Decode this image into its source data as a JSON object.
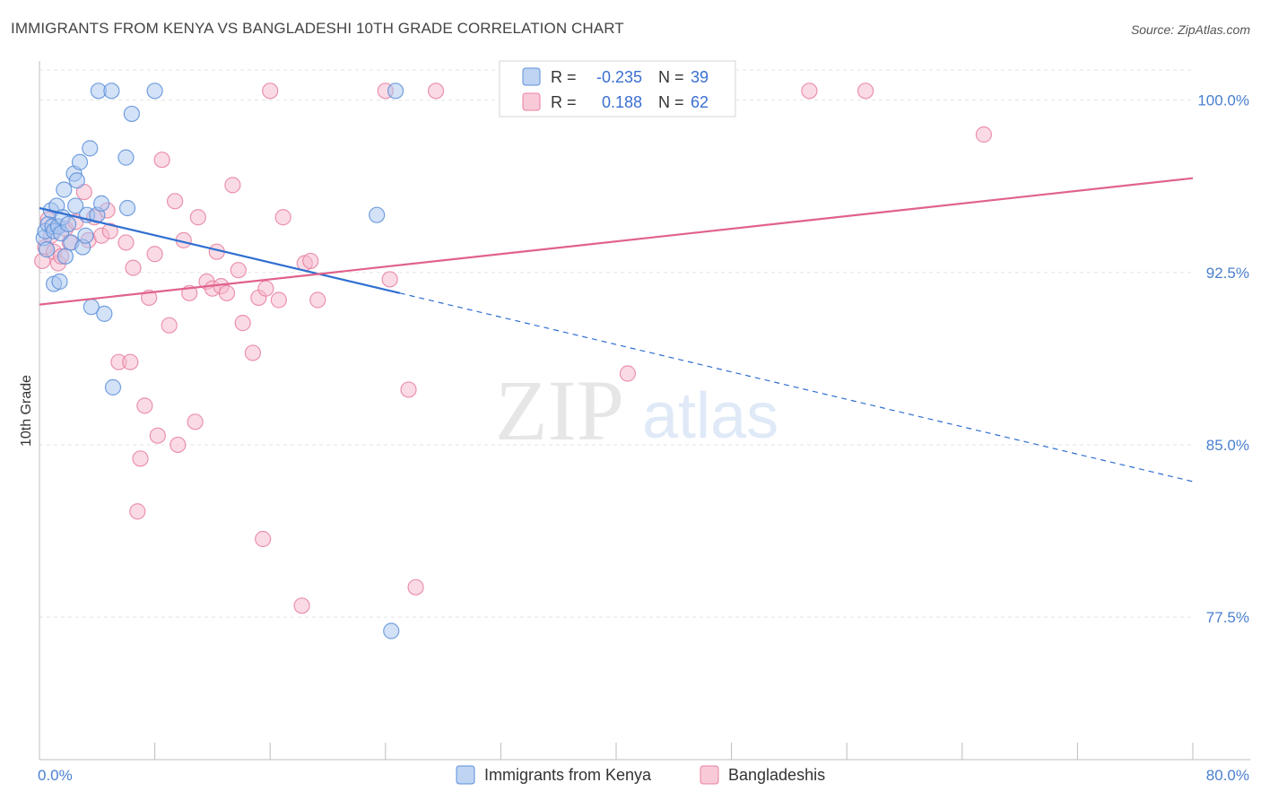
{
  "header": {
    "title": "IMMIGRANTS FROM KENYA VS BANGLADESHI 10TH GRADE CORRELATION CHART",
    "source": "Source: ZipAtlas.com"
  },
  "watermark": {
    "zip": "ZIP",
    "atlas": "atlas"
  },
  "colors": {
    "blue_fill": "#a9c6ef",
    "blue_stroke": "#5b8fd9",
    "blue_line": "#2f6fd1",
    "pink_fill": "#f5b8cb",
    "pink_stroke": "#e8809f",
    "pink_line": "#e0628c",
    "grid": "#e3e3e3",
    "axis_label": "#4a7fcf"
  },
  "chart_data": {
    "type": "scatter",
    "title": "IMMIGRANTS FROM KENYA VS BANGLADESHI 10TH GRADE CORRELATION CHART",
    "xlabel": "",
    "ylabel": "10th Grade",
    "xlim": [
      0,
      80
    ],
    "ylim": [
      71.3,
      101.7
    ],
    "x_tick_labels": [
      {
        "value": 0,
        "label": "0.0%"
      },
      {
        "value": 80,
        "label": "80.0%"
      }
    ],
    "x_minor_ticks": [
      0,
      8,
      16,
      24,
      32,
      40,
      48,
      56,
      64,
      72,
      80
    ],
    "y_ticks": [
      {
        "value": 100.0,
        "label": "100.0%"
      },
      {
        "value": 92.5,
        "label": "92.5%"
      },
      {
        "value": 85.0,
        "label": "85.0%"
      },
      {
        "value": 77.5,
        "label": "77.5%"
      }
    ],
    "grid": true,
    "legend": {
      "position": "top-center",
      "entries": [
        {
          "r_label": "R =",
          "r": "-0.235",
          "n_label": "N =",
          "n": "39"
        },
        {
          "r_label": "R =",
          "r": "0.188",
          "n_label": "N =",
          "n": "62"
        }
      ]
    },
    "bottom_legend": [
      "Immigrants from Kenya",
      "Bangladeshis"
    ],
    "series": [
      {
        "name": "Immigrants from Kenya",
        "color": "blue",
        "trend": {
          "x0": 0,
          "y0": 95.3,
          "x1": 25,
          "y1": 91.6,
          "dash_to_x": 80,
          "dash_to_y": 83.4
        },
        "points": [
          [
            0.3,
            94.0
          ],
          [
            0.4,
            94.3
          ],
          [
            0.5,
            93.5
          ],
          [
            0.6,
            94.6
          ],
          [
            0.8,
            95.2
          ],
          [
            0.9,
            94.5
          ],
          [
            1.0,
            94.3
          ],
          [
            1.0,
            92.0
          ],
          [
            1.2,
            95.4
          ],
          [
            1.3,
            94.5
          ],
          [
            1.4,
            92.1
          ],
          [
            1.5,
            94.2
          ],
          [
            1.6,
            94.9
          ],
          [
            1.7,
            96.1
          ],
          [
            1.8,
            93.2
          ],
          [
            2.0,
            94.6
          ],
          [
            2.2,
            93.8
          ],
          [
            2.4,
            96.8
          ],
          [
            2.5,
            95.4
          ],
          [
            2.6,
            96.5
          ],
          [
            2.8,
            97.3
          ],
          [
            3.0,
            93.6
          ],
          [
            3.2,
            94.1
          ],
          [
            3.3,
            95.0
          ],
          [
            3.5,
            97.9
          ],
          [
            3.6,
            91.0
          ],
          [
            4.0,
            95.0
          ],
          [
            4.1,
            100.4
          ],
          [
            4.3,
            95.5
          ],
          [
            4.5,
            90.7
          ],
          [
            5.0,
            100.4
          ],
          [
            5.1,
            87.5
          ],
          [
            6.0,
            97.5
          ],
          [
            6.1,
            95.3
          ],
          [
            6.4,
            99.4
          ],
          [
            8.0,
            100.4
          ],
          [
            23.4,
            95.0
          ],
          [
            24.7,
            100.4
          ],
          [
            24.4,
            76.9
          ]
        ]
      },
      {
        "name": "Bangladeshis",
        "color": "pink",
        "trend": {
          "x0": 0,
          "y0": 91.1,
          "x1": 80,
          "y1": 96.6
        },
        "points": [
          [
            0.2,
            93.0
          ],
          [
            0.4,
            93.6
          ],
          [
            0.6,
            94.8
          ],
          [
            0.8,
            94.1
          ],
          [
            1.0,
            93.4
          ],
          [
            1.3,
            92.9
          ],
          [
            1.5,
            93.2
          ],
          [
            1.8,
            94.4
          ],
          [
            2.1,
            93.8
          ],
          [
            2.5,
            94.7
          ],
          [
            3.1,
            96.0
          ],
          [
            3.4,
            93.9
          ],
          [
            3.8,
            94.9
          ],
          [
            4.3,
            94.1
          ],
          [
            4.7,
            95.2
          ],
          [
            4.9,
            94.3
          ],
          [
            5.5,
            88.6
          ],
          [
            6.0,
            93.8
          ],
          [
            6.3,
            88.6
          ],
          [
            6.5,
            92.7
          ],
          [
            6.8,
            82.1
          ],
          [
            7.0,
            84.4
          ],
          [
            7.3,
            86.7
          ],
          [
            7.6,
            91.4
          ],
          [
            8.0,
            93.3
          ],
          [
            8.2,
            85.4
          ],
          [
            8.5,
            97.4
          ],
          [
            9.0,
            90.2
          ],
          [
            9.4,
            95.6
          ],
          [
            9.6,
            85.0
          ],
          [
            10.0,
            93.9
          ],
          [
            10.4,
            91.6
          ],
          [
            10.8,
            86.0
          ],
          [
            11.0,
            94.9
          ],
          [
            11.6,
            92.1
          ],
          [
            12.0,
            91.8
          ],
          [
            12.3,
            93.4
          ],
          [
            12.6,
            91.9
          ],
          [
            13.0,
            91.6
          ],
          [
            13.4,
            96.3
          ],
          [
            13.8,
            92.6
          ],
          [
            14.1,
            90.3
          ],
          [
            14.8,
            89.0
          ],
          [
            15.2,
            91.4
          ],
          [
            15.5,
            80.9
          ],
          [
            15.7,
            91.8
          ],
          [
            16.0,
            100.4
          ],
          [
            16.6,
            91.3
          ],
          [
            16.9,
            94.9
          ],
          [
            18.2,
            78.0
          ],
          [
            18.4,
            92.9
          ],
          [
            18.8,
            93.0
          ],
          [
            19.3,
            91.3
          ],
          [
            24.0,
            100.4
          ],
          [
            24.3,
            92.2
          ],
          [
            25.6,
            87.4
          ],
          [
            26.1,
            78.8
          ],
          [
            27.5,
            100.4
          ],
          [
            40.8,
            88.1
          ],
          [
            53.4,
            100.4
          ],
          [
            57.3,
            100.4
          ],
          [
            65.5,
            98.5
          ]
        ]
      }
    ]
  }
}
